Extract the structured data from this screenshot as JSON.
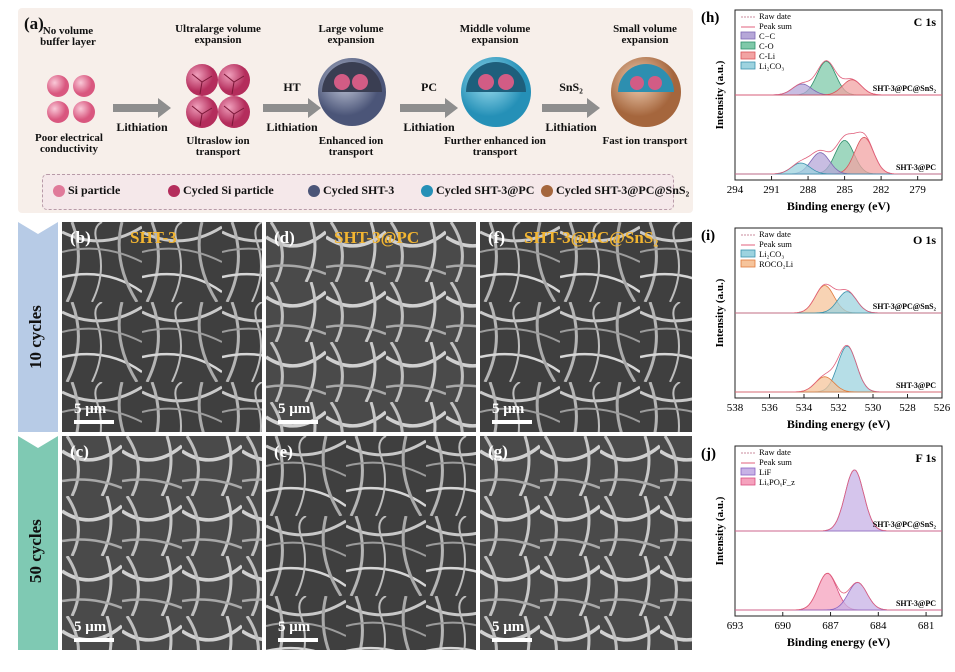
{
  "panel_a": {
    "label": "(a)",
    "stages": [
      {
        "top": "No volume buffer layer",
        "bottom": "Poor electrical conductivity"
      },
      {
        "top": "Ultralarge volume expansion",
        "bottom": "Ultraslow ion transport"
      },
      {
        "top": "Large volume expansion",
        "bottom": "Enhanced ion transport"
      },
      {
        "top": "Middle volume expansion",
        "bottom": "Further enhanced ion transport"
      },
      {
        "top": "Small volume expansion",
        "bottom": "Fast ion transport"
      }
    ],
    "arrows": [
      {
        "top": "",
        "bottom": "Lithiation"
      },
      {
        "top": "HT",
        "bottom": "Lithiation"
      },
      {
        "top": "PC",
        "bottom": "Lithiation"
      },
      {
        "top": "SnS₂",
        "bottom": "Lithiation"
      }
    ],
    "legend": [
      "Si particle",
      "Cycled Si particle",
      "Cycled SHT-3",
      "Cycled SHT-3@PC",
      "Cycled SHT-3@PC@SnS₂"
    ]
  },
  "cycles": {
    "row1": "10 cycles",
    "row2": "50 cycles"
  },
  "sem": {
    "b": {
      "label": "(b)",
      "title": "SHT-3",
      "scale": "5 μm"
    },
    "d": {
      "label": "(d)",
      "title": "SHT-3@PC",
      "scale": "5 μm"
    },
    "f": {
      "label": "(f)",
      "title": "SHT-3@PC@SnS₂",
      "scale": "5 μm"
    },
    "c": {
      "label": "(c)",
      "title": "",
      "scale": "5 μm"
    },
    "e": {
      "label": "(e)",
      "title": "",
      "scale": "5 μm"
    },
    "g": {
      "label": "(g)",
      "title": "",
      "scale": "5 μm"
    }
  },
  "colors": {
    "legend_dash": "#b89aa8",
    "title_yellow": "#f2b531",
    "tab_blue": "#b7cbe6",
    "tab_green": "#7fc9b3"
  },
  "chart_data": [
    {
      "type": "line",
      "panel": "(h)",
      "title": "C 1s",
      "xlabel": "Binding energy (eV)",
      "ylabel": "Intensity (a.u.)",
      "xlim": [
        294,
        277
      ],
      "xticks": [
        "294",
        "291",
        "288",
        "285",
        "282",
        "279"
      ],
      "legend": [
        "Raw date",
        "Peak sum",
        "C−C",
        "C-O",
        "C-Li",
        "Li₂CO₃"
      ],
      "samples": [
        "SHT-3@PC@SnS₂",
        "SHT-3@PC"
      ],
      "peaks": {
        "SHT-3@PC@SnS₂": [
          {
            "name": "C-O",
            "center": 286.5,
            "height": 0.55
          },
          {
            "name": "C−C",
            "center": 288.5,
            "height": 0.18
          },
          {
            "name": "C-Li",
            "center": 284.4,
            "height": 0.25
          }
        ],
        "SHT-3@PC": [
          {
            "name": "C-O",
            "center": 285.0,
            "height": 0.55
          },
          {
            "name": "C-Li",
            "center": 283.4,
            "height": 0.6
          },
          {
            "name": "C−C",
            "center": 287.0,
            "height": 0.35
          },
          {
            "name": "Li₂CO₃",
            "center": 288.6,
            "height": 0.18
          }
        ]
      }
    },
    {
      "type": "line",
      "panel": "(i)",
      "title": "O 1s",
      "xlabel": "Binding energy (eV)",
      "ylabel": "Intensity (a.u.)",
      "xlim": [
        538,
        526
      ],
      "xticks": [
        "538",
        "536",
        "534",
        "532",
        "530",
        "528",
        "526"
      ],
      "legend": [
        "Raw date",
        "Peak sum",
        "Li₂CO₃",
        "ROCO₂Li"
      ],
      "samples": [
        "SHT-3@PC@SnS₂",
        "SHT-3@PC"
      ],
      "peaks": {
        "SHT-3@PC@SnS₂": [
          {
            "name": "ROCO₂Li",
            "center": 532.8,
            "height": 0.45
          },
          {
            "name": "Li₂CO₃",
            "center": 531.5,
            "height": 0.35
          }
        ],
        "SHT-3@PC": [
          {
            "name": "Li₂CO₃",
            "center": 531.5,
            "height": 0.75
          },
          {
            "name": "ROCO₂Li",
            "center": 532.8,
            "height": 0.25
          }
        ]
      }
    },
    {
      "type": "line",
      "panel": "(j)",
      "title": "F 1s",
      "xlabel": "Binding energy (eV)",
      "ylabel": "Intensity (a.u.)",
      "xlim": [
        693,
        680
      ],
      "xticks": [
        "693",
        "690",
        "687",
        "684",
        "681"
      ],
      "legend": [
        "Raw date",
        "Peak sum",
        "LiF",
        "LiₓPOᵧF_z"
      ],
      "samples": [
        "SHT-3@PC@SnS₂",
        "SHT-3@PC"
      ],
      "peaks": {
        "SHT-3@PC@SnS₂": [
          {
            "name": "LiF",
            "center": 685.5,
            "height": 1.0
          }
        ],
        "SHT-3@PC": [
          {
            "name": "LiₓPOᵧF_z",
            "center": 687.2,
            "height": 0.6
          },
          {
            "name": "LiF",
            "center": 685.3,
            "height": 0.45
          }
        ]
      }
    }
  ]
}
